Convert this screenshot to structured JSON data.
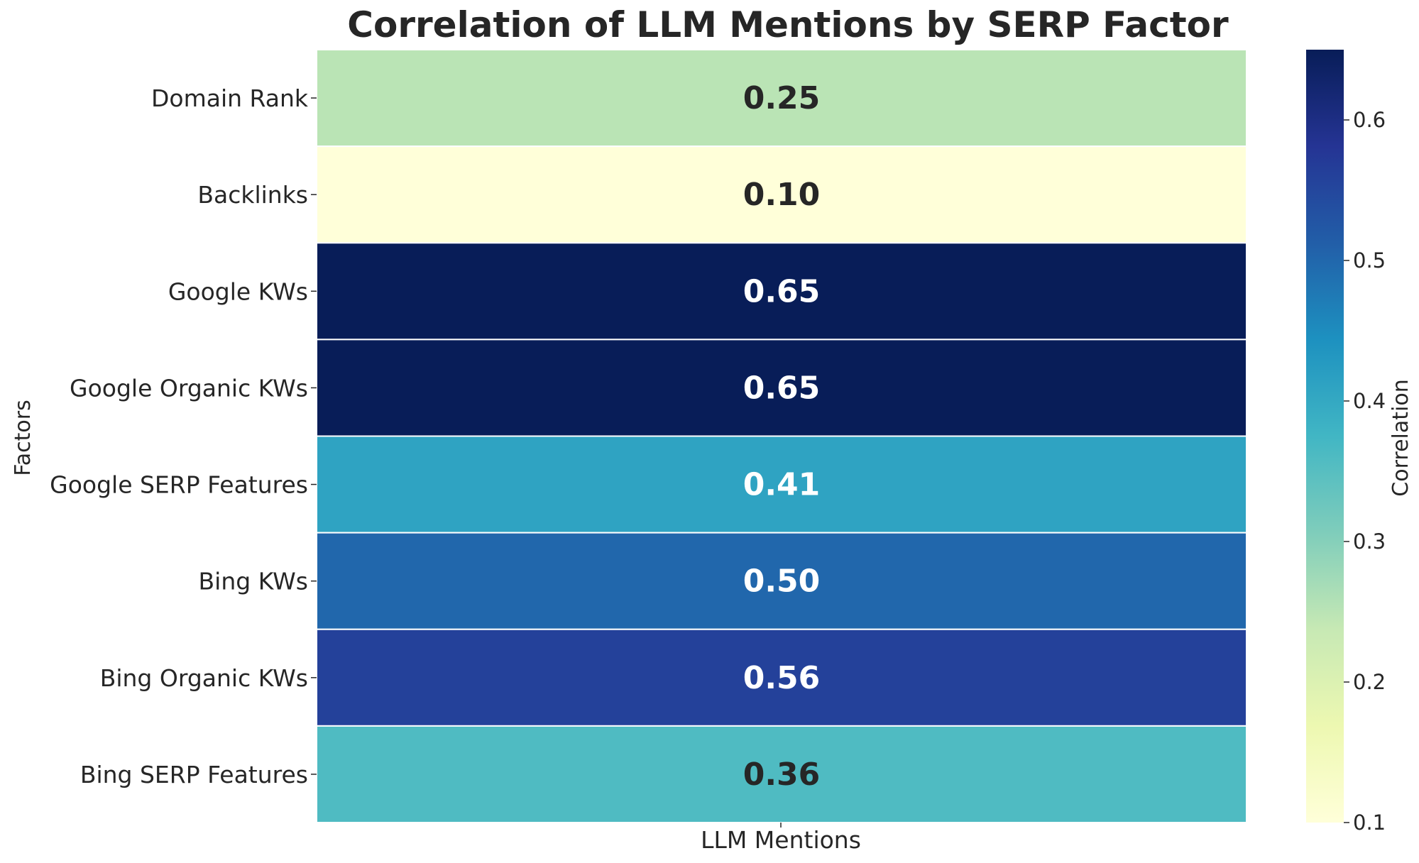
{
  "chart_data": {
    "type": "heatmap",
    "title": "Correlation of LLM Mentions by SERP Factor",
    "xlabel": "",
    "ylabel": "Factors",
    "columns": [
      "LLM Mentions"
    ],
    "rows": [
      "Domain Rank",
      "Backlinks",
      "Google KWs",
      "Google Organic KWs",
      "Google SERP Features",
      "Bing KWs",
      "Bing Organic KWs",
      "Bing SERP Features"
    ],
    "values": [
      0.25,
      0.1,
      0.65,
      0.65,
      0.41,
      0.5,
      0.56,
      0.36
    ],
    "value_labels": [
      "0.25",
      "0.10",
      "0.65",
      "0.65",
      "0.41",
      "0.50",
      "0.56",
      "0.36"
    ],
    "colormap": "YlGnBu",
    "colorbar": {
      "label": "Correlation",
      "vmin": 0.1,
      "vmax": 0.65,
      "ticks": [
        0.1,
        0.2,
        0.3,
        0.4,
        0.5,
        0.6
      ],
      "tick_labels": [
        "0.1",
        "0.2",
        "0.3",
        "0.4",
        "0.5",
        "0.6"
      ]
    }
  }
}
